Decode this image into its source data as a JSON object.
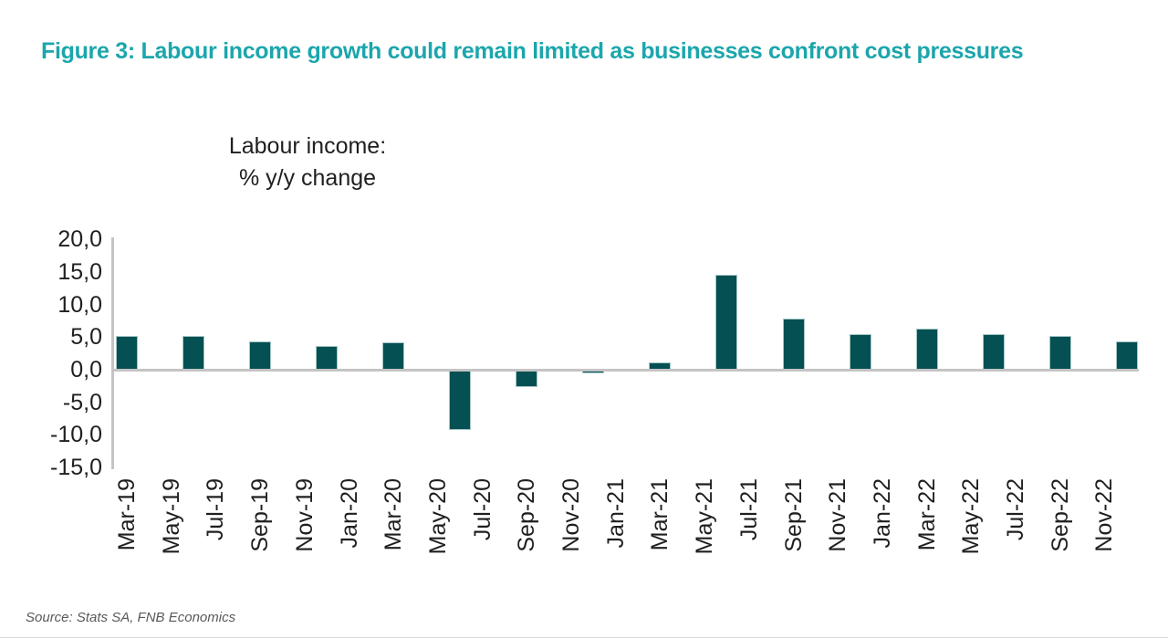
{
  "title": "Figure 3: Labour income growth could remain limited as businesses confront cost pressures",
  "source": "Source: Stats SA, FNB Economics",
  "colors": {
    "title_teal": "#1ba6ac",
    "bar_fill": "#045052",
    "bar_border": "#a5c6c6",
    "axis_gray": "#c4c4c4",
    "tick_text": "#1f1f1f",
    "source_text": "#595959"
  },
  "chart_data": {
    "type": "bar",
    "title": "Labour income: % y/y change",
    "chart_label_line1": "Labour income:",
    "chart_label_line2": "% y/y change",
    "ylabel": "",
    "xlabel": "",
    "ylim": [
      -15,
      20
    ],
    "ytick_step": 5,
    "grid": false,
    "legend": false,
    "decimal_separator": ",",
    "y_ticks": [
      {
        "label": "20,0",
        "value": 20
      },
      {
        "label": "15,0",
        "value": 15
      },
      {
        "label": "10,0",
        "value": 10
      },
      {
        "label": "5,0",
        "value": 5
      },
      {
        "label": "0,0",
        "value": 0
      },
      {
        "label": "-5,0",
        "value": -5
      },
      {
        "label": "-10,0",
        "value": -10
      },
      {
        "label": "-15,0",
        "value": -15
      }
    ],
    "x_tick_labels": [
      "Mar-19",
      "May-19",
      "Jul-19",
      "Sep-19",
      "Nov-19",
      "Jan-20",
      "Mar-20",
      "May-20",
      "Jul-20",
      "Sep-20",
      "Nov-20",
      "Jan-21",
      "Mar-21",
      "May-21",
      "Jul-21",
      "Sep-21",
      "Nov-21",
      "Jan-22",
      "Mar-22",
      "May-22",
      "Jul-22",
      "Sep-22",
      "Nov-22"
    ],
    "series": [
      {
        "name": "Labour income % y/y change",
        "points": [
          {
            "quarter": "Mar-19",
            "month_index": 0,
            "value": 5.2
          },
          {
            "quarter": "Jun-19",
            "month_index": 3,
            "value": 5.2
          },
          {
            "quarter": "Sep-19",
            "month_index": 6,
            "value": 4.3
          },
          {
            "quarter": "Dec-19",
            "month_index": 9,
            "value": 3.7
          },
          {
            "quarter": "Mar-20",
            "month_index": 12,
            "value": 4.2
          },
          {
            "quarter": "Jun-20",
            "month_index": 15,
            "value": -9.3
          },
          {
            "quarter": "Sep-20",
            "month_index": 18,
            "value": -2.6
          },
          {
            "quarter": "Dec-20",
            "month_index": 21,
            "value": -0.6
          },
          {
            "quarter": "Mar-21",
            "month_index": 24,
            "value": 1.1
          },
          {
            "quarter": "Jun-21",
            "month_index": 27,
            "value": 14.6
          },
          {
            "quarter": "Sep-21",
            "month_index": 30,
            "value": 7.8
          },
          {
            "quarter": "Dec-21",
            "month_index": 33,
            "value": 5.5
          },
          {
            "quarter": "Mar-22",
            "month_index": 36,
            "value": 6.3
          },
          {
            "quarter": "Jun-22",
            "month_index": 39,
            "value": 5.5
          },
          {
            "quarter": "Sep-22",
            "month_index": 42,
            "value": 5.2
          },
          {
            "quarter": "Dec-22",
            "month_index": 45,
            "value": 4.3
          }
        ]
      }
    ]
  }
}
